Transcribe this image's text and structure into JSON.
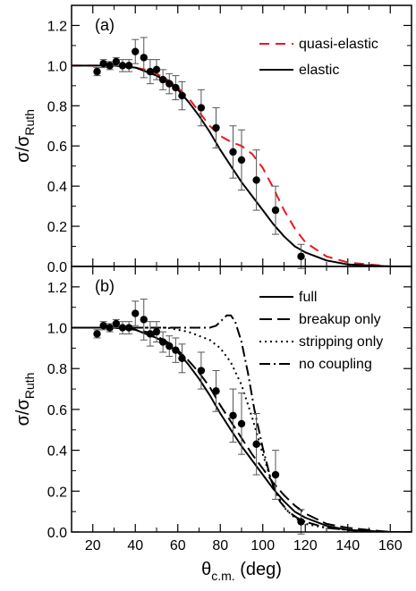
{
  "chart_data": [
    {
      "type": "line",
      "panel_label": "(a)",
      "xlabel": "",
      "ylabel": "σ/σ_Ruth",
      "ylabel_main": "σ/σ",
      "ylabel_sub": "Ruth",
      "xlim": [
        10,
        170
      ],
      "ylim": [
        0,
        1.3
      ],
      "xticks": [
        20,
        40,
        60,
        80,
        100,
        120,
        140,
        160
      ],
      "yticks": [
        "0.0",
        "0.2",
        "0.4",
        "0.6",
        "0.8",
        "1.0",
        "1.2"
      ],
      "show_x_tick_labels": false,
      "legend_position": "top-right",
      "series": [
        {
          "name": "quasi-elastic",
          "style": "dashed",
          "color": "#e8191f",
          "x": [
            10,
            20,
            30,
            40,
            45,
            50,
            55,
            60,
            65,
            70,
            75,
            80,
            85,
            90,
            95,
            100,
            105,
            110,
            115,
            120,
            130,
            140,
            150,
            160,
            170
          ],
          "y": [
            1.0,
            1.0,
            1.0,
            0.99,
            0.98,
            0.96,
            0.93,
            0.89,
            0.84,
            0.77,
            0.7,
            0.65,
            0.62,
            0.6,
            0.56,
            0.49,
            0.39,
            0.28,
            0.19,
            0.12,
            0.05,
            0.02,
            0.01,
            0.0,
            0.0
          ]
        },
        {
          "name": "elastic",
          "style": "solid",
          "color": "#000000",
          "x": [
            10,
            20,
            30,
            40,
            45,
            50,
            55,
            60,
            65,
            70,
            75,
            80,
            85,
            90,
            95,
            100,
            105,
            110,
            115,
            120,
            130,
            140,
            150,
            160,
            170
          ],
          "y": [
            1.0,
            1.0,
            1.0,
            0.99,
            0.97,
            0.95,
            0.92,
            0.88,
            0.82,
            0.75,
            0.67,
            0.58,
            0.5,
            0.42,
            0.35,
            0.28,
            0.21,
            0.15,
            0.1,
            0.07,
            0.03,
            0.01,
            0.005,
            0.0,
            0.0
          ]
        }
      ],
      "data_points": {
        "x": [
          22,
          25,
          28,
          31,
          34,
          37,
          40,
          44,
          47,
          50,
          53,
          56,
          59,
          62,
          71,
          78,
          86,
          90,
          97,
          106,
          118
        ],
        "y": [
          0.97,
          1.01,
          1.0,
          1.02,
          1.0,
          1.0,
          1.07,
          1.04,
          0.97,
          0.98,
          0.93,
          0.91,
          0.89,
          0.85,
          0.79,
          0.69,
          0.57,
          0.53,
          0.43,
          0.28,
          0.05
        ],
        "err": [
          0.02,
          0.02,
          0.02,
          0.02,
          0.03,
          0.03,
          0.06,
          0.1,
          0.06,
          0.05,
          0.05,
          0.05,
          0.06,
          0.07,
          0.09,
          0.1,
          0.13,
          0.15,
          0.15,
          0.12,
          0.06
        ]
      }
    },
    {
      "type": "line",
      "panel_label": "(b)",
      "xlabel": "θc.m. (deg)",
      "xlabel_main": "θ",
      "xlabel_sub": "c.m.",
      "xlabel_tail": " (deg)",
      "ylabel": "σ/σ_Ruth",
      "ylabel_main": "σ/σ",
      "ylabel_sub": "Ruth",
      "xlim": [
        10,
        170
      ],
      "ylim": [
        0,
        1.3
      ],
      "xticks": [
        20,
        40,
        60,
        80,
        100,
        120,
        140,
        160
      ],
      "xtick_labels": [
        "20",
        "40",
        "60",
        "80",
        "100",
        "120",
        "140",
        "160"
      ],
      "yticks": [
        "0.0",
        "0.2",
        "0.4",
        "0.6",
        "0.8",
        "1.0",
        "1.2"
      ],
      "show_x_tick_labels": true,
      "legend_position": "top-right",
      "series": [
        {
          "name": "full",
          "style": "solid",
          "color": "#000000",
          "x": [
            10,
            20,
            30,
            40,
            45,
            50,
            55,
            60,
            65,
            70,
            75,
            80,
            85,
            90,
            95,
            100,
            105,
            110,
            115,
            120,
            130,
            140,
            150,
            160,
            170
          ],
          "y": [
            1.0,
            1.0,
            1.0,
            0.99,
            0.97,
            0.95,
            0.92,
            0.88,
            0.82,
            0.75,
            0.67,
            0.58,
            0.5,
            0.42,
            0.35,
            0.28,
            0.21,
            0.15,
            0.1,
            0.07,
            0.03,
            0.01,
            0.005,
            0.0,
            0.0
          ]
        },
        {
          "name": "breakup only",
          "style": "longdash",
          "color": "#000000",
          "x": [
            10,
            20,
            30,
            40,
            45,
            50,
            55,
            60,
            65,
            70,
            75,
            80,
            85,
            90,
            95,
            100,
            105,
            110,
            115,
            120,
            130,
            140,
            150,
            160,
            170
          ],
          "y": [
            1.0,
            1.0,
            1.0,
            0.99,
            0.98,
            0.96,
            0.93,
            0.89,
            0.84,
            0.78,
            0.71,
            0.62,
            0.54,
            0.46,
            0.38,
            0.31,
            0.24,
            0.18,
            0.13,
            0.09,
            0.04,
            0.02,
            0.01,
            0.0,
            0.0
          ]
        },
        {
          "name": "stripping only",
          "style": "dotted",
          "color": "#000000",
          "x": [
            10,
            30,
            50,
            55,
            60,
            65,
            70,
            75,
            80,
            85,
            90,
            95,
            100,
            105,
            110,
            115,
            120,
            130,
            140,
            150,
            160,
            170
          ],
          "y": [
            1.0,
            1.0,
            1.0,
            1.0,
            0.99,
            0.98,
            0.96,
            0.94,
            0.9,
            0.83,
            0.72,
            0.56,
            0.38,
            0.22,
            0.12,
            0.07,
            0.04,
            0.02,
            0.01,
            0.0,
            0.0,
            0.0
          ]
        },
        {
          "name": "no coupling",
          "style": "dashdot",
          "color": "#000000",
          "x": [
            10,
            30,
            50,
            60,
            65,
            70,
            75,
            78,
            80,
            83,
            85,
            87,
            90,
            93,
            96,
            100,
            104,
            108,
            112,
            116,
            120,
            130,
            140,
            150,
            160,
            170
          ],
          "y": [
            1.0,
            1.0,
            1.0,
            1.0,
            1.0,
            1.0,
            1.0,
            1.01,
            1.03,
            1.06,
            1.06,
            1.03,
            0.93,
            0.78,
            0.6,
            0.41,
            0.25,
            0.15,
            0.1,
            0.07,
            0.05,
            0.02,
            0.01,
            0.0,
            0.0,
            0.0
          ]
        }
      ],
      "data_points": {
        "x": [
          22,
          25,
          28,
          31,
          34,
          37,
          40,
          44,
          47,
          50,
          53,
          56,
          59,
          62,
          71,
          78,
          86,
          90,
          97,
          106,
          118
        ],
        "y": [
          0.97,
          1.01,
          1.0,
          1.02,
          1.0,
          1.0,
          1.07,
          1.04,
          0.97,
          0.98,
          0.93,
          0.91,
          0.89,
          0.85,
          0.79,
          0.69,
          0.57,
          0.53,
          0.43,
          0.28,
          0.05
        ],
        "err": [
          0.02,
          0.02,
          0.02,
          0.02,
          0.03,
          0.03,
          0.06,
          0.1,
          0.06,
          0.05,
          0.05,
          0.05,
          0.06,
          0.07,
          0.09,
          0.1,
          0.13,
          0.15,
          0.15,
          0.12,
          0.06
        ]
      }
    }
  ]
}
